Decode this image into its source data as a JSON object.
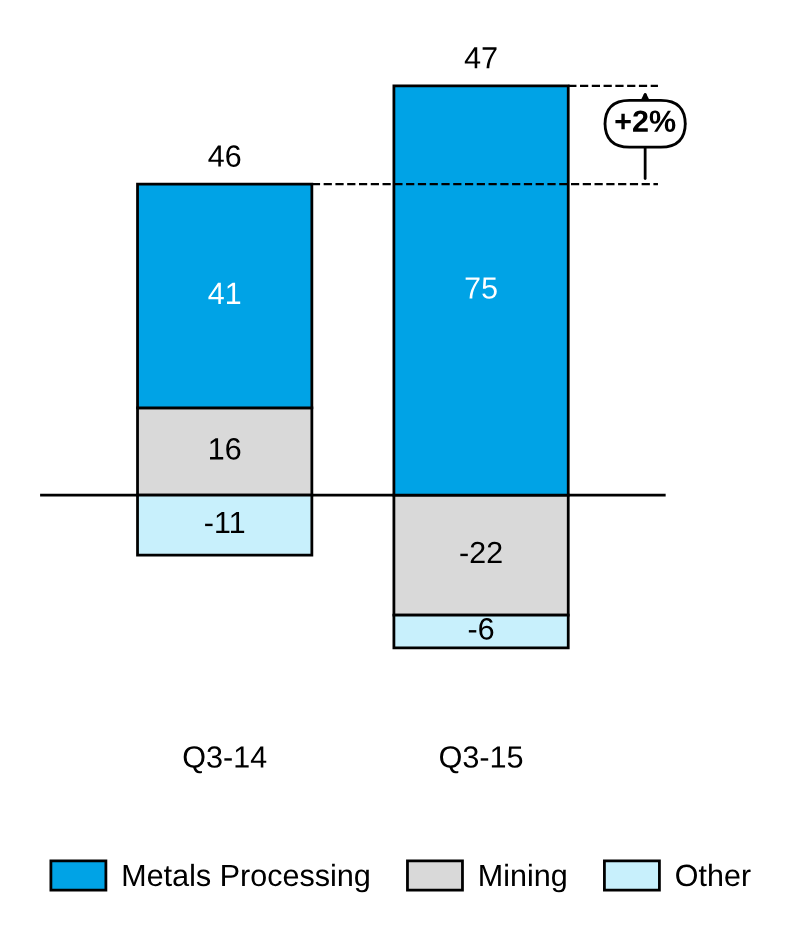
{
  "chart_data": {
    "type": "bar",
    "stacked": true,
    "categories": [
      "Q3-14",
      "Q3-15"
    ],
    "series": [
      {
        "name": "Mining",
        "color": "#d9d9d9",
        "values": [
          16,
          -22
        ]
      },
      {
        "name": "Metals Processing",
        "color": "#00a3e6",
        "values": [
          41,
          75
        ]
      },
      {
        "name": "Other",
        "color": "#c8f0fc",
        "values": [
          -11,
          -6
        ]
      }
    ],
    "data_labels": true,
    "totals": [
      "46",
      "47"
    ],
    "annotations": [
      "+2%"
    ],
    "ref_lines": [
      {
        "axis": "y",
        "value": 57,
        "line_style": "dashed",
        "color": "#000000"
      },
      {
        "axis": "y",
        "value": 75,
        "line_style": "dashed",
        "color": "#000000"
      }
    ],
    "legend": "bottom",
    "tick_labels": "x",
    "grid": false
  }
}
